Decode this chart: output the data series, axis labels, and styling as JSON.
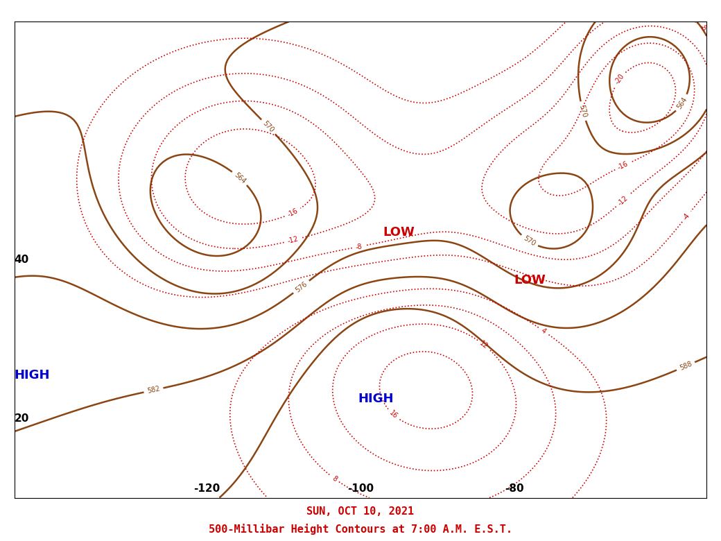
{
  "title_date": "SUN, OCT 10, 2021",
  "title_subtitle": "500-Millibar Height Contours at 7:00 A.M. E.S.T.",
  "title_date_color": "#cc0000",
  "title_subtitle_color": "#cc0000",
  "background_color": "#ffffff",
  "contour_color_solid": "#8B4513",
  "contour_color_dashed": "#cc0000",
  "lat_labels": [
    20,
    40
  ],
  "lon_labels": [
    -120,
    -100,
    -80
  ],
  "label_color": "#000000",
  "low_label_color": "#cc0000",
  "high_label_color": "#0000cc",
  "fig_width": 10.4,
  "fig_height": 7.8,
  "dpi": 100
}
